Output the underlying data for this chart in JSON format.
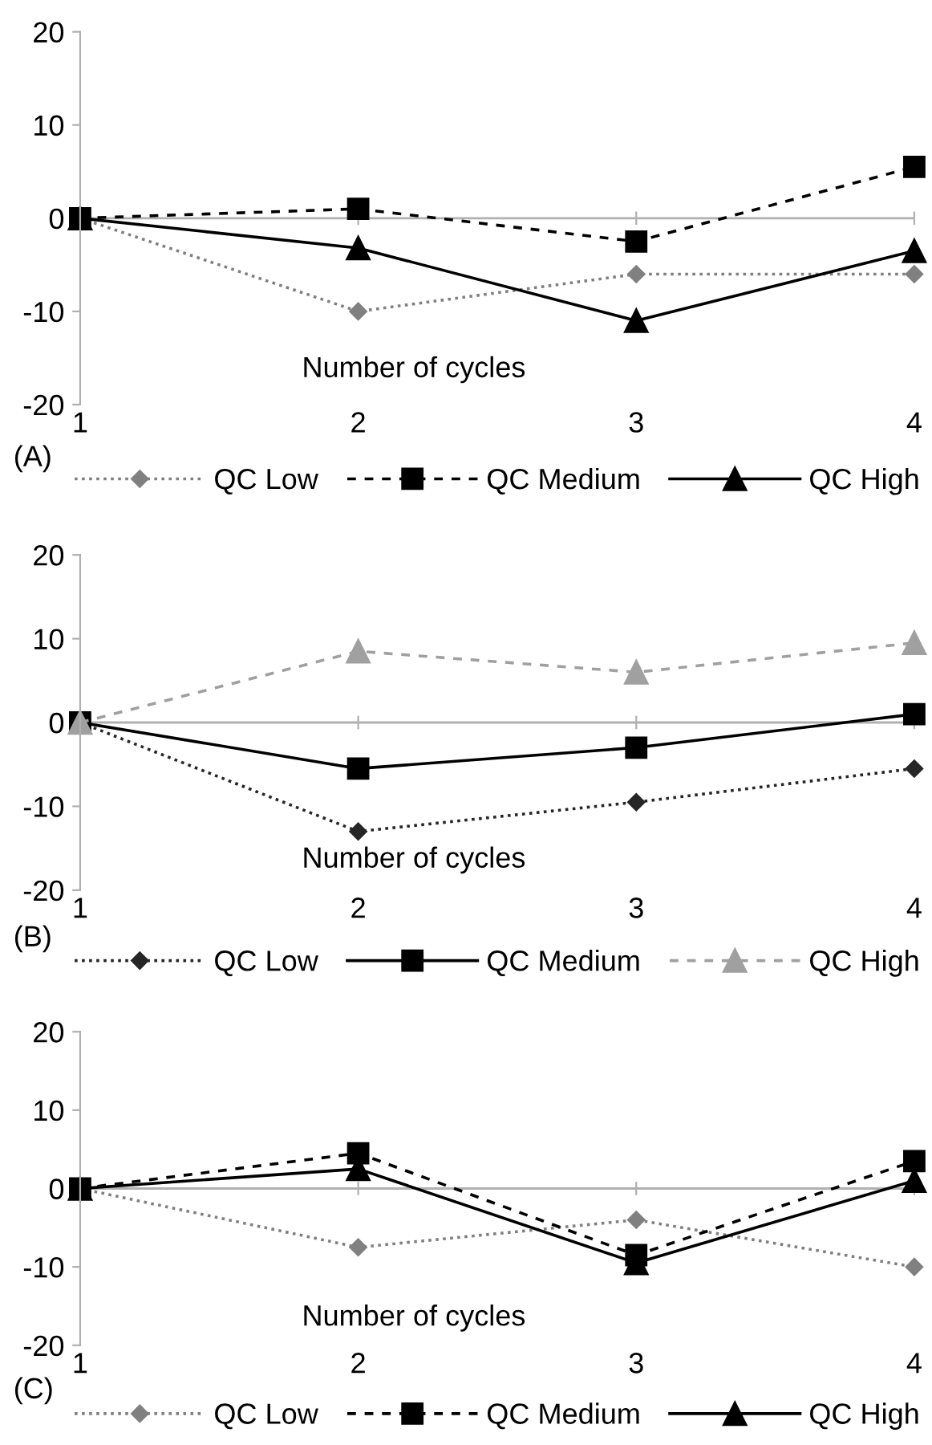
{
  "chart_data": [
    {
      "type": "line",
      "categories": [
        "1",
        "2",
        "3",
        "4"
      ],
      "xlabel": "Number of cycles",
      "annotations": [
        "(A)"
      ],
      "ylim": [
        -20,
        20
      ],
      "yticks": [
        -20,
        -10,
        0,
        10,
        20
      ],
      "grid": false,
      "legend": "bottom",
      "ref_lines": [
        {
          "axis": "y",
          "value": 0,
          "color": "#b0b0b0"
        }
      ],
      "series": [
        {
          "name": "QC Low",
          "color": "#808080",
          "marker": "diamond",
          "line_style": "dotted",
          "values": [
            0,
            -10,
            -6,
            -6
          ]
        },
        {
          "name": "QC Medium",
          "color": "#000000",
          "marker": "square",
          "line_style": "dashed",
          "values": [
            0,
            1,
            -2.5,
            5.5
          ]
        },
        {
          "name": "QC High",
          "color": "#000000",
          "marker": "triangle",
          "line_style": "solid",
          "values": [
            0,
            -3.2,
            -11,
            -3.5
          ]
        }
      ]
    },
    {
      "type": "line",
      "categories": [
        "1",
        "2",
        "3",
        "4"
      ],
      "xlabel": "Number of cycles",
      "annotations": [
        "(B)"
      ],
      "ylim": [
        -20,
        20
      ],
      "yticks": [
        -20,
        -10,
        0,
        10,
        20
      ],
      "grid": false,
      "legend": "bottom",
      "ref_lines": [
        {
          "axis": "y",
          "value": 0,
          "color": "#b0b0b0"
        }
      ],
      "series": [
        {
          "name": "QC Low",
          "color": "#262626",
          "marker": "diamond",
          "line_style": "dotted",
          "values": [
            0,
            -13,
            -9.5,
            -5.5
          ]
        },
        {
          "name": "QC Medium",
          "color": "#000000",
          "marker": "square",
          "line_style": "solid",
          "values": [
            0,
            -5.5,
            -3,
            1
          ]
        },
        {
          "name": "QC High",
          "color": "#a0a0a0",
          "marker": "triangle",
          "line_style": "dashed",
          "values": [
            0,
            8.5,
            6,
            9.5
          ]
        }
      ]
    },
    {
      "type": "line",
      "categories": [
        "1",
        "2",
        "3",
        "4"
      ],
      "xlabel": "Number of cycles",
      "annotations": [
        "(C)"
      ],
      "ylim": [
        -20,
        20
      ],
      "yticks": [
        -20,
        -10,
        0,
        10,
        20
      ],
      "grid": false,
      "legend": "bottom",
      "ref_lines": [
        {
          "axis": "y",
          "value": 0,
          "color": "#b0b0b0"
        }
      ],
      "series": [
        {
          "name": "QC Low",
          "color": "#808080",
          "marker": "diamond",
          "line_style": "dotted",
          "values": [
            0,
            -7.5,
            -4,
            -10
          ]
        },
        {
          "name": "QC Medium",
          "color": "#000000",
          "marker": "square",
          "line_style": "dashed",
          "values": [
            0,
            4.5,
            -8.5,
            3.5
          ]
        },
        {
          "name": "QC High",
          "color": "#000000",
          "marker": "triangle",
          "line_style": "solid",
          "values": [
            0,
            2.5,
            -9.5,
            1
          ]
        }
      ]
    }
  ]
}
